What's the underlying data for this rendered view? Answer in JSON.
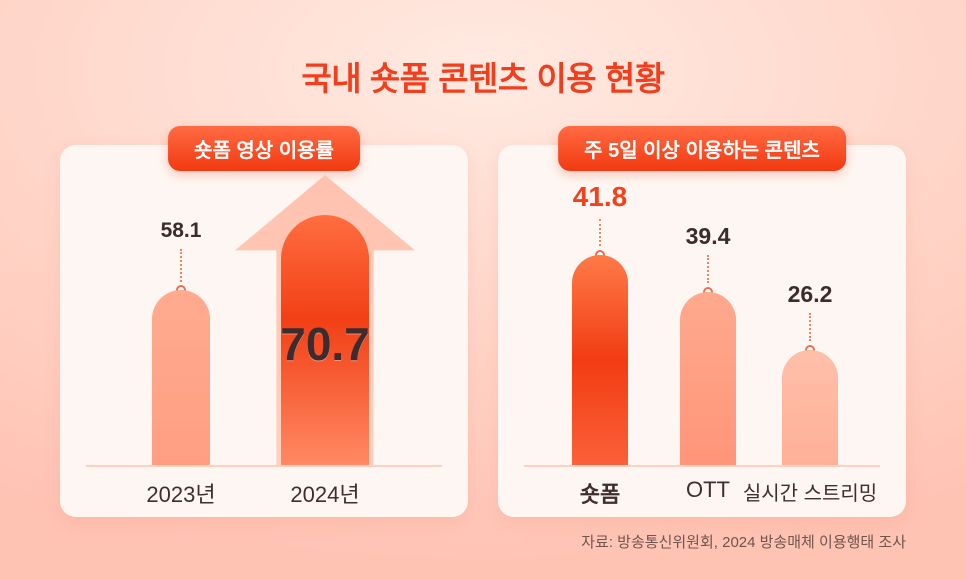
{
  "title": "국내 숏폼 콘텐츠 이용 현황",
  "source": "자료: 방송통신위원회, 2024 방송매체 이용행태 조사",
  "colors": {
    "accent": "#f2421b",
    "badge_gradient_top": "#ff6b43",
    "badge_gradient_bottom": "#f23911",
    "bar_salmon": "#ffa288",
    "bar_deep_red": "#f23c13",
    "bar_light_pink": "#ffb8a2",
    "background_pink": "#ffd6c9",
    "card_background": "#fef6f2",
    "dark_text": "#3b2c2f"
  },
  "left_chart": {
    "badge": "숏폼 영상 이용률",
    "bars": [
      {
        "label": "2023년",
        "value": "58.1"
      },
      {
        "label": "2024년",
        "value": "70.7"
      }
    ]
  },
  "right_chart": {
    "badge": "주 5일 이상 이용하는 콘텐츠",
    "bars": [
      {
        "label": "숏폼",
        "value": "41.8"
      },
      {
        "label": "OTT",
        "value": "39.4"
      },
      {
        "label": "실시간 스트리밍",
        "value": "26.2"
      }
    ]
  },
  "chart_data": [
    {
      "type": "bar",
      "title": "숏폼 영상 이용률",
      "categories": [
        "2023년",
        "2024년"
      ],
      "values": [
        58.1,
        70.7
      ],
      "unit": "%",
      "ylim": [
        0,
        80
      ],
      "highlight_category": "2024년",
      "annotation": "2024 bar drawn as upward growth arrow",
      "legend": "none",
      "grid": false
    },
    {
      "type": "bar",
      "title": "주 5일 이상 이용하는 콘텐츠",
      "categories": [
        "숏폼",
        "OTT",
        "실시간 스트리밍"
      ],
      "values": [
        41.8,
        39.4,
        26.2
      ],
      "unit": "%",
      "ylim": [
        0,
        50
      ],
      "highlight_category": "숏폼",
      "legend": "none",
      "grid": false
    }
  ]
}
